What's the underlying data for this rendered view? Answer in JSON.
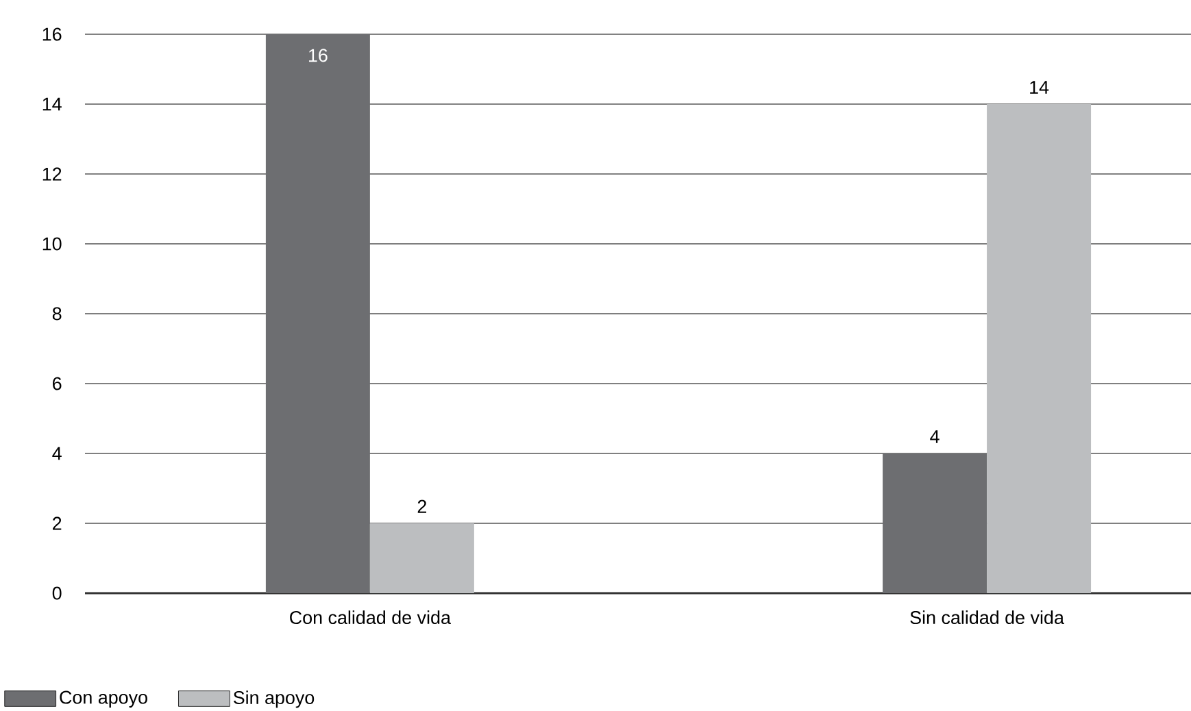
{
  "chart_data": {
    "type": "bar",
    "categories": [
      "Con calidad de vida",
      "Sin calidad de vida"
    ],
    "series": [
      {
        "name": "Con apoyo",
        "color": "#6d6e71",
        "values": [
          16,
          4
        ],
        "value_labels": [
          "16",
          "4"
        ]
      },
      {
        "name": "Sin apoyo",
        "color": "#bcbec0",
        "values": [
          2,
          14
        ],
        "value_labels": [
          "2",
          "14"
        ]
      }
    ],
    "ylim": [
      0,
      16
    ],
    "yticks": [
      0,
      2,
      4,
      6,
      8,
      10,
      12,
      14,
      16
    ],
    "grid": "y",
    "legend": "bottom left"
  }
}
